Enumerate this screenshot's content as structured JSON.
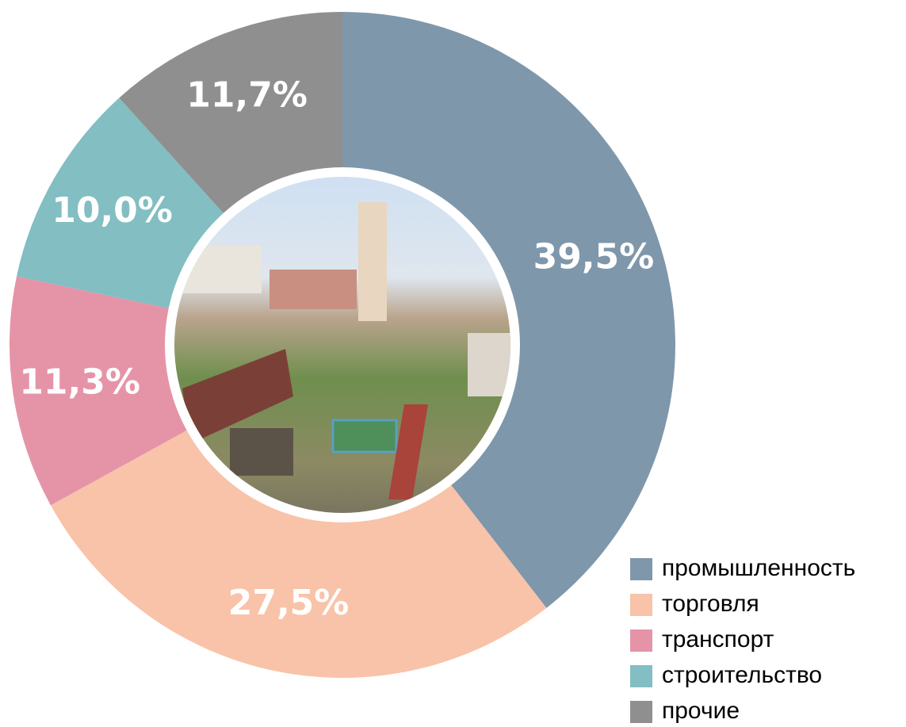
{
  "chart_data": {
    "type": "donut",
    "categories": [
      "промышленность",
      "торговля",
      "транспорт",
      "строительство",
      "прочие"
    ],
    "values": [
      39.5,
      27.5,
      11.3,
      10.0,
      11.7
    ],
    "value_labels": [
      "39,5%",
      "27,5%",
      "11,3%",
      "10,0%",
      "11,7%"
    ],
    "colors": [
      "#7f97ab",
      "#f8c3a9",
      "#e594a8",
      "#82bec2",
      "#8f8f8f"
    ],
    "legend": "bottom-right"
  }
}
